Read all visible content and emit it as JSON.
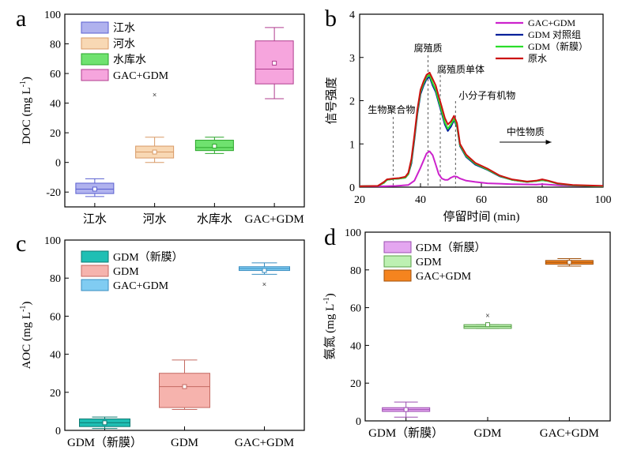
{
  "chart_data": [
    {
      "panel": "a",
      "type": "box",
      "ylabel": "DOC (mg L-1)",
      "ylim": [
        -30,
        100
      ],
      "yticks": [
        -20,
        0,
        20,
        40,
        60,
        80,
        100
      ],
      "categories": [
        "江水",
        "河水",
        "水库水",
        "GAC+GDM"
      ],
      "legend": {
        "position": "top-left",
        "entries": [
          "江水",
          "河水",
          "水库水",
          "GAC+GDM"
        ]
      },
      "colors": [
        "#b0b2ee",
        "#f8d8b4",
        "#6fe26f",
        "#f6a5dd"
      ],
      "edge_colors": [
        "#5a5fd0",
        "#d89a66",
        "#2aa62a",
        "#b03d8f"
      ],
      "boxes": [
        {
          "q1": -21,
          "median": -18,
          "q3": -14,
          "whisker_low": -23,
          "whisker_high": -11,
          "mean": -18,
          "outliers": []
        },
        {
          "q1": 3,
          "median": 7,
          "q3": 11,
          "whisker_low": 0,
          "whisker_high": 17,
          "mean": 7,
          "outliers": [
            46
          ]
        },
        {
          "q1": 8,
          "median": 10,
          "q3": 15,
          "whisker_low": 6,
          "whisker_high": 17,
          "mean": 11,
          "outliers": []
        },
        {
          "q1": 53,
          "median": 63,
          "q3": 82,
          "whisker_low": 43,
          "whisker_high": 91,
          "mean": 67,
          "outliers": []
        }
      ]
    },
    {
      "panel": "b",
      "type": "line",
      "xlabel": "停留时间 (min)",
      "ylabel": "信号强度",
      "xlim": [
        20,
        100
      ],
      "ylim": [
        0,
        4
      ],
      "xticks": [
        20,
        40,
        60,
        80,
        100
      ],
      "yticks": [
        0,
        1,
        2,
        3,
        4
      ],
      "legend": {
        "position": "top-right"
      },
      "annotations": [
        {
          "text": "生物聚合物",
          "x": 31
        },
        {
          "text": "腐殖质",
          "x": 42.5
        },
        {
          "text": "腐殖质单体",
          "x": 46.5
        },
        {
          "text": "小分子有机物",
          "x": 51.5
        },
        {
          "text": "中性物质",
          "arrow_from": 66,
          "arrow_to": 83
        }
      ],
      "series": [
        {
          "name": "GAC+GDM",
          "color": "#cc22cc",
          "points": [
            [
              20,
              0.02
            ],
            [
              28,
              0.02
            ],
            [
              32,
              0.03
            ],
            [
              36,
              0.05
            ],
            [
              38,
              0.15
            ],
            [
              40,
              0.45
            ],
            [
              42,
              0.78
            ],
            [
              43,
              0.83
            ],
            [
              44,
              0.74
            ],
            [
              45,
              0.52
            ],
            [
              46,
              0.3
            ],
            [
              47,
              0.2
            ],
            [
              48,
              0.17
            ],
            [
              49,
              0.17
            ],
            [
              50,
              0.22
            ],
            [
              51,
              0.25
            ],
            [
              52,
              0.24
            ],
            [
              53,
              0.2
            ],
            [
              55,
              0.15
            ],
            [
              58,
              0.12
            ],
            [
              62,
              0.09
            ],
            [
              70,
              0.07
            ],
            [
              78,
              0.06
            ],
            [
              80,
              0.07
            ],
            [
              82,
              0.06
            ],
            [
              86,
              0.04
            ],
            [
              92,
              0.03
            ],
            [
              100,
              0.02
            ]
          ]
        },
        {
          "name": "GDM 对照组",
          "color": "#00209a",
          "points": [
            [
              20,
              0.02
            ],
            [
              26,
              0.03
            ],
            [
              28,
              0.1
            ],
            [
              29,
              0.17
            ],
            [
              31,
              0.19
            ],
            [
              33,
              0.2
            ],
            [
              35,
              0.22
            ],
            [
              36,
              0.3
            ],
            [
              37,
              0.55
            ],
            [
              38,
              1.1
            ],
            [
              39,
              1.7
            ],
            [
              40,
              2.15
            ],
            [
              41,
              2.35
            ],
            [
              42,
              2.5
            ],
            [
              43,
              2.55
            ],
            [
              44,
              2.35
            ],
            [
              45,
              2.2
            ],
            [
              46,
              1.95
            ],
            [
              47,
              1.7
            ],
            [
              48,
              1.45
            ],
            [
              49,
              1.3
            ],
            [
              50,
              1.4
            ],
            [
              51,
              1.55
            ],
            [
              52,
              1.4
            ],
            [
              53,
              0.95
            ],
            [
              55,
              0.7
            ],
            [
              58,
              0.52
            ],
            [
              62,
              0.4
            ],
            [
              66,
              0.25
            ],
            [
              70,
              0.17
            ],
            [
              75,
              0.12
            ],
            [
              78,
              0.14
            ],
            [
              80,
              0.16
            ],
            [
              82,
              0.14
            ],
            [
              85,
              0.08
            ],
            [
              90,
              0.04
            ],
            [
              100,
              0.02
            ]
          ]
        },
        {
          "name": "GDM（新膜）",
          "color": "#2bdd2b",
          "points": [
            [
              20,
              0.02
            ],
            [
              26,
              0.03
            ],
            [
              28,
              0.1
            ],
            [
              29,
              0.17
            ],
            [
              31,
              0.19
            ],
            [
              33,
              0.2
            ],
            [
              35,
              0.22
            ],
            [
              36,
              0.3
            ],
            [
              37,
              0.6
            ],
            [
              38,
              1.15
            ],
            [
              39,
              1.75
            ],
            [
              40,
              2.2
            ],
            [
              41,
              2.4
            ],
            [
              42,
              2.55
            ],
            [
              43,
              2.6
            ],
            [
              44,
              2.4
            ],
            [
              45,
              2.25
            ],
            [
              46,
              2.0
            ],
            [
              47,
              1.75
            ],
            [
              48,
              1.5
            ],
            [
              49,
              1.35
            ],
            [
              50,
              1.45
            ],
            [
              51,
              1.58
            ],
            [
              52,
              1.42
            ],
            [
              53,
              0.97
            ],
            [
              55,
              0.72
            ],
            [
              58,
              0.54
            ],
            [
              62,
              0.41
            ],
            [
              66,
              0.26
            ],
            [
              70,
              0.17
            ],
            [
              75,
              0.12
            ],
            [
              78,
              0.14
            ],
            [
              80,
              0.16
            ],
            [
              82,
              0.14
            ],
            [
              85,
              0.08
            ],
            [
              90,
              0.04
            ],
            [
              100,
              0.02
            ]
          ]
        },
        {
          "name": "原水",
          "color": "#cc1111",
          "points": [
            [
              20,
              0.02
            ],
            [
              26,
              0.03
            ],
            [
              28,
              0.12
            ],
            [
              29,
              0.18
            ],
            [
              31,
              0.2
            ],
            [
              33,
              0.21
            ],
            [
              35,
              0.24
            ],
            [
              36,
              0.33
            ],
            [
              37,
              0.65
            ],
            [
              38,
              1.2
            ],
            [
              39,
              1.8
            ],
            [
              40,
              2.25
            ],
            [
              41,
              2.45
            ],
            [
              42,
              2.6
            ],
            [
              43,
              2.65
            ],
            [
              44,
              2.5
            ],
            [
              45,
              2.35
            ],
            [
              46,
              2.1
            ],
            [
              47,
              1.85
            ],
            [
              48,
              1.6
            ],
            [
              49,
              1.45
            ],
            [
              50,
              1.52
            ],
            [
              51,
              1.65
            ],
            [
              52,
              1.48
            ],
            [
              53,
              1.0
            ],
            [
              55,
              0.75
            ],
            [
              58,
              0.56
            ],
            [
              62,
              0.43
            ],
            [
              66,
              0.27
            ],
            [
              70,
              0.18
            ],
            [
              75,
              0.13
            ],
            [
              78,
              0.15
            ],
            [
              80,
              0.18
            ],
            [
              82,
              0.15
            ],
            [
              85,
              0.09
            ],
            [
              90,
              0.05
            ],
            [
              100,
              0.03
            ]
          ]
        }
      ]
    },
    {
      "panel": "c",
      "type": "box",
      "ylabel": "AOC (mg L-1)",
      "ylim": [
        0,
        100
      ],
      "yticks": [
        0,
        20,
        40,
        60,
        80,
        100
      ],
      "categories": [
        "GDM（新膜）",
        "GDM",
        "GAC+GDM"
      ],
      "legend": {
        "position": "top-left",
        "entries": [
          "GDM（新膜）",
          "GDM",
          "GAC+GDM"
        ]
      },
      "colors": [
        "#1fbfb4",
        "#f6b3ad",
        "#80ccf2"
      ],
      "edge_colors": [
        "#0e7a72",
        "#c46a62",
        "#3a8ec0"
      ],
      "boxes": [
        {
          "q1": 2,
          "median": 4,
          "q3": 6,
          "whisker_low": 1,
          "whisker_high": 7,
          "mean": 4,
          "outliers": []
        },
        {
          "q1": 12,
          "median": 23,
          "q3": 30,
          "whisker_low": 11,
          "whisker_high": 37,
          "mean": 23,
          "outliers": []
        },
        {
          "q1": 84,
          "median": 85,
          "q3": 86,
          "whisker_low": 82,
          "whisker_high": 88,
          "mean": 84,
          "outliers": [
            77
          ]
        }
      ]
    },
    {
      "panel": "d",
      "type": "box",
      "ylabel": "氨氮 (mg L-1)",
      "ylim": [
        0,
        100
      ],
      "yticks": [
        0,
        20,
        40,
        60,
        80,
        100
      ],
      "categories": [
        "GDM（新膜）",
        "GDM",
        "GAC+GDM"
      ],
      "legend": {
        "position": "top-left",
        "entries": [
          "GDM（新膜）",
          "GDM",
          "GAC+GDM"
        ]
      },
      "colors": [
        "#e4a6f0",
        "#bdf0b2",
        "#f5841f"
      ],
      "edge_colors": [
        "#9b4fb0",
        "#5aa04a",
        "#a0520e"
      ],
      "boxes": [
        {
          "q1": 5,
          "median": 6,
          "q3": 7,
          "whisker_low": 2,
          "whisker_high": 10,
          "mean": 6,
          "outliers": []
        },
        {
          "q1": 49,
          "median": 50,
          "q3": 51,
          "whisker_low": 49,
          "whisker_high": 51,
          "mean": 51,
          "outliers": [
            56
          ]
        },
        {
          "q1": 83,
          "median": 84,
          "q3": 85,
          "whisker_low": 82,
          "whisker_high": 86,
          "mean": 84,
          "outliers": []
        }
      ]
    }
  ]
}
